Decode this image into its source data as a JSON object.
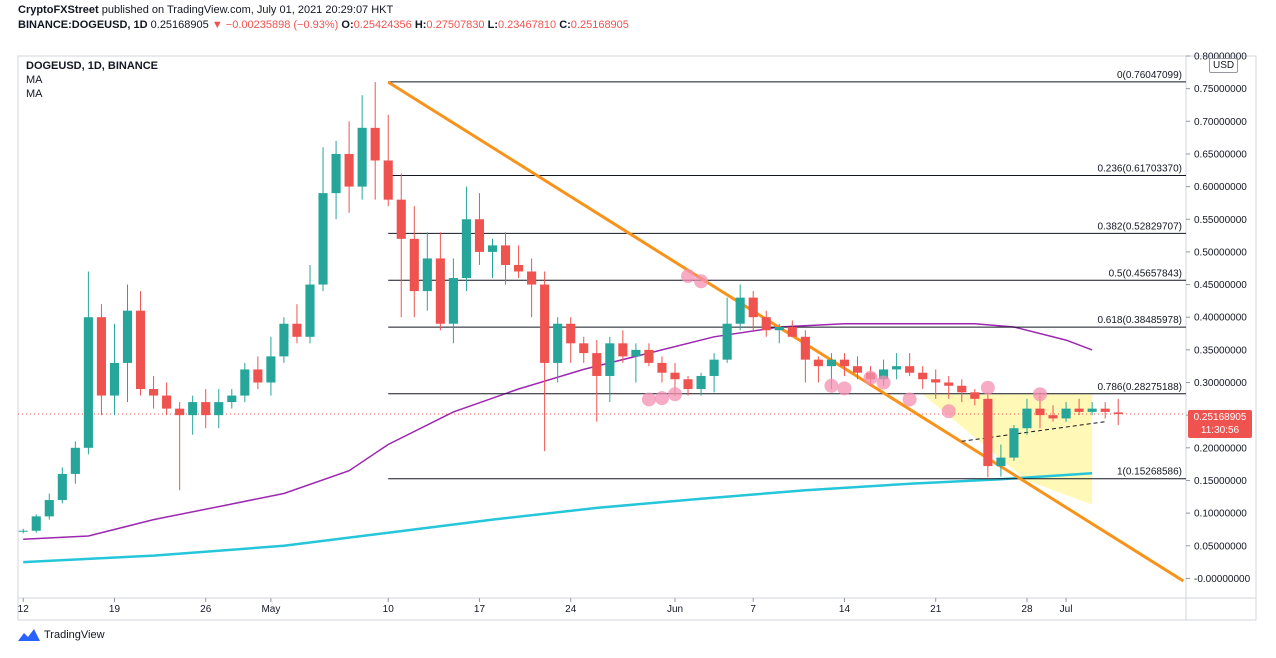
{
  "header": {
    "publisher": "CryptoFXStreet",
    "published_text": "published on TradingView.com, July 01, 2021 20:29:07 HKT",
    "symbol": "BINANCE:DOGEUSD, 1D",
    "last": "0.25168905",
    "change": "−0.00235898 (−0.93%)",
    "o_label": "O:",
    "o_value": "0.25424356",
    "h_label": "H:",
    "h_value": "0.27507830",
    "l_label": "L:",
    "l_value": "0.23467810",
    "c_label": "C:",
    "c_value": "0.25168905"
  },
  "legend": {
    "title": "DOGEUSD, 1D, BINANCE",
    "ma1": "MA",
    "ma2": "MA"
  },
  "currency_button": "USD",
  "price_tag": {
    "price": "0.25168905",
    "countdown": "11:30:56"
  },
  "footer": {
    "brand": "TradingView"
  },
  "colors": {
    "up": "#26a69a",
    "down": "#ef5350",
    "trendline": "#f7931a",
    "ma_fast": "#9c27b0",
    "ma_slow": "#26c6da",
    "fib": "#131722",
    "highlight": "#fff59d",
    "marker": "#f48fb1"
  },
  "chart_data": {
    "type": "candlestick",
    "title": "DOGEUSD, 1D, BINANCE",
    "ylim": [
      -0.03,
      0.8
    ],
    "y_ticks": [
      "0.80000000",
      "0.75000000",
      "0.70000000",
      "0.65000000",
      "0.60000000",
      "0.55000000",
      "0.50000000",
      "0.45000000",
      "0.40000000",
      "0.35000000",
      "0.30000000",
      "0.25000000",
      "0.20000000",
      "0.15000000",
      "0.10000000",
      "0.05000000",
      "-0.00000000"
    ],
    "y_tick_values": [
      0.8,
      0.75,
      0.7,
      0.65,
      0.6,
      0.55,
      0.5,
      0.45,
      0.4,
      0.35,
      0.3,
      0.25,
      0.2,
      0.15,
      0.1,
      0.05,
      0.0
    ],
    "x_ticks": [
      {
        "label": "12",
        "day": 0
      },
      {
        "label": "19",
        "day": 7
      },
      {
        "label": "26",
        "day": 14
      },
      {
        "label": "May",
        "day": 19
      },
      {
        "label": "10",
        "day": 28
      },
      {
        "label": "17",
        "day": 35
      },
      {
        "label": "24",
        "day": 42
      },
      {
        "label": "Jun",
        "day": 50
      },
      {
        "label": "7",
        "day": 56
      },
      {
        "label": "14",
        "day": 63
      },
      {
        "label": "21",
        "day": 70
      },
      {
        "label": "28",
        "day": 77
      },
      {
        "label": "Jul",
        "day": 80
      }
    ],
    "xlim_days": [
      -0.4,
      89.2
    ],
    "candles": [
      [
        0.072,
        0.076,
        0.069,
        0.073
      ],
      [
        0.073,
        0.098,
        0.07,
        0.095
      ],
      [
        0.095,
        0.13,
        0.09,
        0.12
      ],
      [
        0.12,
        0.17,
        0.115,
        0.16
      ],
      [
        0.16,
        0.21,
        0.145,
        0.2
      ],
      [
        0.2,
        0.47,
        0.19,
        0.4
      ],
      [
        0.4,
        0.42,
        0.25,
        0.28
      ],
      [
        0.28,
        0.39,
        0.25,
        0.33
      ],
      [
        0.33,
        0.45,
        0.27,
        0.41
      ],
      [
        0.41,
        0.44,
        0.28,
        0.29
      ],
      [
        0.29,
        0.31,
        0.26,
        0.28
      ],
      [
        0.28,
        0.3,
        0.25,
        0.26
      ],
      [
        0.26,
        0.27,
        0.135,
        0.25
      ],
      [
        0.25,
        0.28,
        0.22,
        0.27
      ],
      [
        0.27,
        0.29,
        0.23,
        0.25
      ],
      [
        0.25,
        0.29,
        0.23,
        0.27
      ],
      [
        0.27,
        0.29,
        0.26,
        0.28
      ],
      [
        0.28,
        0.33,
        0.27,
        0.32
      ],
      [
        0.32,
        0.34,
        0.29,
        0.3
      ],
      [
        0.3,
        0.37,
        0.28,
        0.34
      ],
      [
        0.34,
        0.4,
        0.33,
        0.39
      ],
      [
        0.39,
        0.42,
        0.36,
        0.37
      ],
      [
        0.37,
        0.48,
        0.36,
        0.45
      ],
      [
        0.45,
        0.66,
        0.44,
        0.59
      ],
      [
        0.59,
        0.67,
        0.55,
        0.65
      ],
      [
        0.65,
        0.7,
        0.56,
        0.6
      ],
      [
        0.6,
        0.74,
        0.58,
        0.69
      ],
      [
        0.69,
        0.76,
        0.58,
        0.64
      ],
      [
        0.64,
        0.71,
        0.57,
        0.58
      ],
      [
        0.58,
        0.62,
        0.4,
        0.52
      ],
      [
        0.52,
        0.57,
        0.4,
        0.44
      ],
      [
        0.44,
        0.53,
        0.41,
        0.49
      ],
      [
        0.49,
        0.53,
        0.38,
        0.39
      ],
      [
        0.39,
        0.49,
        0.36,
        0.46
      ],
      [
        0.46,
        0.6,
        0.44,
        0.55
      ],
      [
        0.55,
        0.59,
        0.48,
        0.5
      ],
      [
        0.5,
        0.52,
        0.46,
        0.51
      ],
      [
        0.51,
        0.53,
        0.45,
        0.48
      ],
      [
        0.48,
        0.51,
        0.46,
        0.47
      ],
      [
        0.47,
        0.49,
        0.4,
        0.45
      ],
      [
        0.45,
        0.47,
        0.195,
        0.33
      ],
      [
        0.33,
        0.4,
        0.3,
        0.39
      ],
      [
        0.39,
        0.4,
        0.33,
        0.36
      ],
      [
        0.36,
        0.37,
        0.33,
        0.345
      ],
      [
        0.345,
        0.365,
        0.24,
        0.31
      ],
      [
        0.31,
        0.37,
        0.27,
        0.36
      ],
      [
        0.36,
        0.38,
        0.33,
        0.34
      ],
      [
        0.34,
        0.36,
        0.3,
        0.35
      ],
      [
        0.35,
        0.36,
        0.325,
        0.33
      ],
      [
        0.33,
        0.34,
        0.3,
        0.315
      ],
      [
        0.315,
        0.33,
        0.28,
        0.305
      ],
      [
        0.305,
        0.31,
        0.28,
        0.29
      ],
      [
        0.29,
        0.315,
        0.28,
        0.31
      ],
      [
        0.31,
        0.345,
        0.285,
        0.335
      ],
      [
        0.335,
        0.43,
        0.33,
        0.39
      ],
      [
        0.39,
        0.45,
        0.38,
        0.43
      ],
      [
        0.43,
        0.44,
        0.38,
        0.4
      ],
      [
        0.4,
        0.41,
        0.37,
        0.38
      ],
      [
        0.38,
        0.39,
        0.36,
        0.385
      ],
      [
        0.385,
        0.395,
        0.37,
        0.37
      ],
      [
        0.37,
        0.38,
        0.3,
        0.335
      ],
      [
        0.335,
        0.34,
        0.3,
        0.325
      ],
      [
        0.325,
        0.345,
        0.29,
        0.335
      ],
      [
        0.335,
        0.345,
        0.31,
        0.325
      ],
      [
        0.325,
        0.34,
        0.305,
        0.315
      ],
      [
        0.315,
        0.325,
        0.295,
        0.305
      ],
      [
        0.305,
        0.335,
        0.295,
        0.32
      ],
      [
        0.32,
        0.345,
        0.305,
        0.325
      ],
      [
        0.325,
        0.345,
        0.31,
        0.315
      ],
      [
        0.315,
        0.325,
        0.29,
        0.305
      ],
      [
        0.305,
        0.32,
        0.275,
        0.3
      ],
      [
        0.3,
        0.31,
        0.275,
        0.295
      ],
      [
        0.295,
        0.305,
        0.27,
        0.285
      ],
      [
        0.285,
        0.29,
        0.265,
        0.275
      ],
      [
        0.275,
        0.285,
        0.155,
        0.172
      ],
      [
        0.172,
        0.205,
        0.156,
        0.185
      ],
      [
        0.185,
        0.235,
        0.18,
        0.23
      ],
      [
        0.23,
        0.275,
        0.22,
        0.26
      ],
      [
        0.26,
        0.285,
        0.23,
        0.25
      ],
      [
        0.25,
        0.265,
        0.24,
        0.245
      ],
      [
        0.245,
        0.27,
        0.24,
        0.26
      ],
      [
        0.26,
        0.275,
        0.25,
        0.255
      ],
      [
        0.255,
        0.27,
        0.25,
        0.26
      ],
      [
        0.26,
        0.27,
        0.245,
        0.255
      ],
      [
        0.2542,
        0.2751,
        0.2347,
        0.2517
      ]
    ],
    "fib_levels": [
      {
        "label": "0(0.76047099)",
        "value": 0.76047099
      },
      {
        "label": "0.236(0.61703370)",
        "value": 0.6170337
      },
      {
        "label": "0.382(0.52829707)",
        "value": 0.52829707
      },
      {
        "label": "0.5(0.45657843)",
        "value": 0.45657843
      },
      {
        "label": "0.618(0.38485978)",
        "value": 0.38485978
      },
      {
        "label": "0.786(0.28275188)",
        "value": 0.28275188
      },
      {
        "label": "1(0.15268586)",
        "value": 0.15268586
      }
    ],
    "fib_start_day": 28,
    "trendline": [
      [
        28,
        0.76
      ],
      [
        89,
        -0.004
      ]
    ],
    "ma_fast": [
      [
        0,
        0.06
      ],
      [
        5,
        0.065
      ],
      [
        10,
        0.09
      ],
      [
        15,
        0.11
      ],
      [
        20,
        0.13
      ],
      [
        25,
        0.165
      ],
      [
        28,
        0.205
      ],
      [
        33,
        0.255
      ],
      [
        38,
        0.29
      ],
      [
        43,
        0.32
      ],
      [
        48,
        0.345
      ],
      [
        53,
        0.37
      ],
      [
        58,
        0.385
      ],
      [
        63,
        0.39
      ],
      [
        68,
        0.39
      ],
      [
        73,
        0.39
      ],
      [
        76,
        0.385
      ],
      [
        80,
        0.365
      ],
      [
        82,
        0.35
      ]
    ],
    "ma_slow": [
      [
        0,
        0.025
      ],
      [
        10,
        0.035
      ],
      [
        20,
        0.05
      ],
      [
        28,
        0.07
      ],
      [
        36,
        0.09
      ],
      [
        44,
        0.108
      ],
      [
        52,
        0.122
      ],
      [
        60,
        0.135
      ],
      [
        68,
        0.145
      ],
      [
        75,
        0.152
      ],
      [
        82,
        0.161
      ]
    ],
    "channel_line": [
      [
        72,
        0.21
      ],
      [
        83,
        0.24
      ]
    ],
    "triangle": [
      [
        69,
        0.282
      ],
      [
        82,
        0.282
      ],
      [
        82,
        0.113
      ],
      [
        77,
        0.15
      ]
    ],
    "markers": [
      {
        "day": 48,
        "price": 0.274
      },
      {
        "day": 49,
        "price": 0.276
      },
      {
        "day": 50,
        "price": 0.282
      },
      {
        "day": 51,
        "price": 0.463
      },
      {
        "day": 52,
        "price": 0.455
      },
      {
        "day": 62,
        "price": 0.295
      },
      {
        "day": 63,
        "price": 0.291
      },
      {
        "day": 65,
        "price": 0.307
      },
      {
        "day": 66,
        "price": 0.3
      },
      {
        "day": 68,
        "price": 0.274
      },
      {
        "day": 71,
        "price": 0.256
      },
      {
        "day": 74,
        "price": 0.292
      },
      {
        "day": 78,
        "price": 0.282
      }
    ],
    "last_price": 0.25168905
  }
}
